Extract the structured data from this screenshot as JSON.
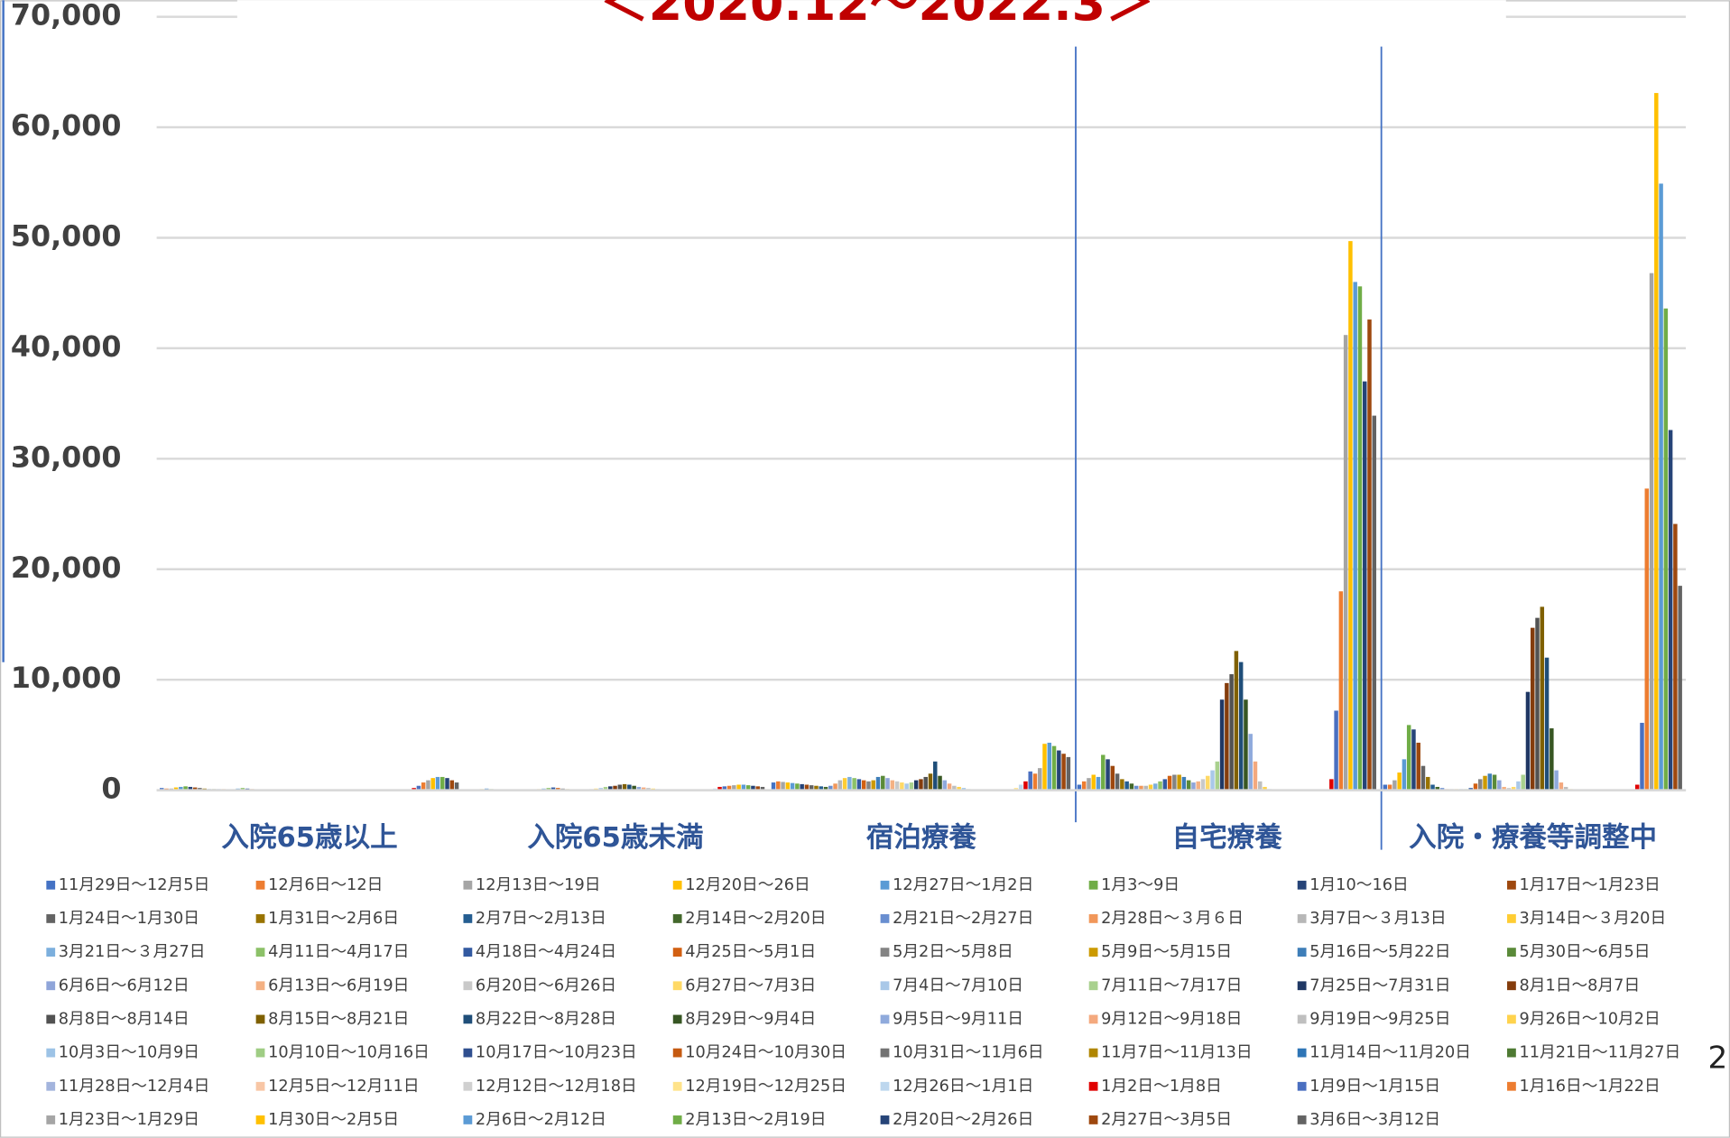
{
  "chart_data": {
    "type": "bar",
    "title": "＜2020.12～2022.3＞",
    "page_number": "2",
    "categories": [
      "入院65歳以上",
      "入院65歳未満",
      "宿泊療養",
      "自宅療養",
      "入院・療養等調整中"
    ],
    "ylim": [
      0,
      70000
    ],
    "yticks": [
      0,
      {
        "value": 10000,
        "label": "10,000"
      },
      {
        "value": 20000,
        "label": "20,000"
      },
      {
        "value": 30000,
        "label": "30,000"
      },
      {
        "value": 40000,
        "label": "40,000"
      },
      {
        "value": 50000,
        "label": "50,000"
      },
      {
        "value": 60000,
        "label": "60,000"
      },
      {
        "value": 70000,
        "label": "70,000"
      }
    ],
    "grid": true,
    "series": [
      {
        "name": "11月29日～12月5日",
        "color": "#4472c4",
        "values": [
          200,
          50,
          700,
          500,
          500
        ]
      },
      {
        "name": "12月6日～12日",
        "color": "#ed7d31",
        "values": [
          150,
          50,
          800,
          800,
          500
        ]
      },
      {
        "name": "12月13日～19日",
        "color": "#a5a5a5",
        "values": [
          150,
          60,
          750,
          1100,
          900
        ]
      },
      {
        "name": "12月20日～26日",
        "color": "#ffc000",
        "values": [
          250,
          100,
          700,
          1400,
          1600
        ]
      },
      {
        "name": "12月27日～1月2日",
        "color": "#5b9bd5",
        "values": [
          300,
          150,
          650,
          1200,
          2800
        ]
      },
      {
        "name": "1月3～9日",
        "color": "#70ad47",
        "values": [
          350,
          100,
          600,
          3200,
          5900
        ]
      },
      {
        "name": "1月10～16日",
        "color": "#264478",
        "values": [
          300,
          80,
          550,
          2800,
          5500
        ]
      },
      {
        "name": "1月17日～1月23日",
        "color": "#9e480e",
        "values": [
          250,
          50,
          500,
          2200,
          4300
        ]
      },
      {
        "name": "1月24日～1月30日",
        "color": "#636363",
        "values": [
          200,
          40,
          450,
          1500,
          2200
        ]
      },
      {
        "name": "1月31日～2月6日",
        "color": "#997300",
        "values": [
          150,
          30,
          400,
          1000,
          1200
        ]
      },
      {
        "name": "2月7日～2月13日",
        "color": "#255e91",
        "values": [
          100,
          20,
          350,
          800,
          500
        ]
      },
      {
        "name": "2月14日～2月20日",
        "color": "#43682b",
        "values": [
          100,
          20,
          300,
          600,
          300
        ]
      },
      {
        "name": "2月21日～2月27日",
        "color": "#698ed0",
        "values": [
          100,
          30,
          400,
          400,
          200
        ]
      },
      {
        "name": "2月28日～３月６日",
        "color": "#f1975a",
        "values": [
          100,
          50,
          600,
          400,
          100
        ]
      },
      {
        "name": "3月7日～３月13日",
        "color": "#b7b7b7",
        "values": [
          80,
          80,
          900,
          400,
          100
        ]
      },
      {
        "name": "3月14日～３月20日",
        "color": "#ffcd33",
        "values": [
          80,
          100,
          1100,
          500,
          100
        ]
      },
      {
        "name": "3月21日～３月27日",
        "color": "#7cafdd",
        "values": [
          150,
          150,
          1200,
          600,
          100
        ]
      },
      {
        "name": "4月11日～4月17日",
        "color": "#8cc168",
        "values": [
          200,
          200,
          1100,
          800,
          100
        ]
      },
      {
        "name": "4月18日～4月24日",
        "color": "#335aa1",
        "values": [
          150,
          250,
          1000,
          1000,
          200
        ]
      },
      {
        "name": "4月25日～5月1日",
        "color": "#d26012",
        "values": [
          100,
          200,
          900,
          1300,
          600
        ]
      },
      {
        "name": "5月2日～5月8日",
        "color": "#848484",
        "values": [
          80,
          150,
          800,
          1400,
          1000
        ]
      },
      {
        "name": "5月9日～5月15日",
        "color": "#cc9a00",
        "values": [
          60,
          100,
          900,
          1400,
          1300
        ]
      },
      {
        "name": "5月16日～5月22日",
        "color": "#3e7eb8",
        "values": [
          50,
          80,
          1200,
          1200,
          1500
        ]
      },
      {
        "name": "5月30日～6月5日",
        "color": "#5a8a39",
        "values": [
          40,
          60,
          1300,
          900,
          1400
        ]
      },
      {
        "name": "6月6日～6月12日",
        "color": "#8fa5d9",
        "values": [
          40,
          60,
          1100,
          700,
          900
        ]
      },
      {
        "name": "6月13日～6月19日",
        "color": "#f4b183",
        "values": [
          30,
          80,
          900,
          800,
          300
        ]
      },
      {
        "name": "6月20日～6月26日",
        "color": "#c9c9c9",
        "values": [
          30,
          100,
          800,
          1000,
          200
        ]
      },
      {
        "name": "6月27日～7月3日",
        "color": "#ffd966",
        "values": [
          30,
          150,
          700,
          1300,
          300
        ]
      },
      {
        "name": "7月4日～7月10日",
        "color": "#a9c8e8",
        "values": [
          30,
          200,
          600,
          1800,
          800
        ]
      },
      {
        "name": "7月11日～7月17日",
        "color": "#a9d18e",
        "values": [
          30,
          300,
          700,
          2600,
          1400
        ]
      },
      {
        "name": "7月25日～7月31日",
        "color": "#203864",
        "values": [
          40,
          350,
          900,
          8200,
          8900
        ]
      },
      {
        "name": "8月1日～8月7日",
        "color": "#843c0c",
        "values": [
          60,
          400,
          1000,
          9700,
          14700
        ]
      },
      {
        "name": "8月8日～8月14日",
        "color": "#525252",
        "values": [
          80,
          500,
          1200,
          10500,
          15600
        ]
      },
      {
        "name": "8月15日～8月21日",
        "color": "#7f6000",
        "values": [
          80,
          550,
          1500,
          12600,
          16600
        ]
      },
      {
        "name": "8月22日～8月28日",
        "color": "#1f4e79",
        "values": [
          80,
          500,
          2600,
          11600,
          12000
        ]
      },
      {
        "name": "8月29日～9月4日",
        "color": "#375623",
        "values": [
          70,
          400,
          1300,
          8200,
          5600
        ]
      },
      {
        "name": "9月5日～9月11日",
        "color": "#8faadc",
        "values": [
          60,
          300,
          900,
          5100,
          1800
        ]
      },
      {
        "name": "9月12日～9月18日",
        "color": "#f4a97e",
        "values": [
          50,
          250,
          600,
          2600,
          700
        ]
      },
      {
        "name": "9月19日～9月25日",
        "color": "#bfbfbf",
        "values": [
          40,
          200,
          400,
          800,
          300
        ]
      },
      {
        "name": "9月26日～10月2日",
        "color": "#ffd34d",
        "values": [
          30,
          150,
          300,
          300,
          100
        ]
      },
      {
        "name": "10月3日～10月9日",
        "color": "#9dc3e6",
        "values": [
          20,
          100,
          200,
          100,
          50
        ]
      },
      {
        "name": "10月10日～10月16日",
        "color": "#9fcd84",
        "values": [
          10,
          50,
          100,
          50,
          30
        ]
      },
      {
        "name": "10月17日～10月23日",
        "color": "#2f4f8f",
        "values": [
          10,
          20,
          50,
          30,
          20
        ]
      },
      {
        "name": "10月24日～10月30日",
        "color": "#c55a11",
        "values": [
          10,
          10,
          30,
          20,
          20
        ]
      },
      {
        "name": "10月31日～11月6日",
        "color": "#737373",
        "values": [
          10,
          10,
          20,
          20,
          20
        ]
      },
      {
        "name": "11月7日～11月13日",
        "color": "#b08600",
        "values": [
          10,
          10,
          20,
          20,
          20
        ]
      },
      {
        "name": "11月14日～11月20日",
        "color": "#2e75b6",
        "values": [
          10,
          10,
          20,
          20,
          20
        ]
      },
      {
        "name": "11月21日～11月27日",
        "color": "#4e7a33",
        "values": [
          10,
          10,
          20,
          20,
          20
        ]
      },
      {
        "name": "11月28日～12月4日",
        "color": "#a3b4dd",
        "values": [
          10,
          10,
          20,
          20,
          20
        ]
      },
      {
        "name": "12月5日～12月11日",
        "color": "#f8c6a5",
        "values": [
          10,
          10,
          20,
          20,
          20
        ]
      },
      {
        "name": "12月12日～12月18日",
        "color": "#d0d0d0",
        "values": [
          20,
          20,
          50,
          20,
          20
        ]
      },
      {
        "name": "12月19日～12月25日",
        "color": "#ffe38a",
        "values": [
          40,
          50,
          200,
          20,
          20
        ]
      },
      {
        "name": "12月26日～1月1日",
        "color": "#bdd7ee",
        "values": [
          80,
          150,
          500,
          30,
          30
        ]
      },
      {
        "name": "1月2日～1月8日",
        "color": "#e00000",
        "values": [
          200,
          300,
          800,
          1000,
          500
        ]
      },
      {
        "name": "1月9日～1月15日",
        "color": "#4a6fc0",
        "values": [
          400,
          350,
          1700,
          7200,
          6100
        ]
      },
      {
        "name": "1月16日～1月22日",
        "color": "#ed7d31",
        "values": [
          700,
          400,
          1500,
          18000,
          27300
        ]
      },
      {
        "name": "1月23日～1月29日",
        "color": "#a5a5a5",
        "values": [
          900,
          450,
          2000,
          41200,
          46800
        ]
      },
      {
        "name": "1月30日～2月5日",
        "color": "#ffc000",
        "values": [
          1100,
          500,
          4200,
          49700,
          63100
        ]
      },
      {
        "name": "2月6日～2月12日",
        "color": "#5b9bd5",
        "values": [
          1200,
          500,
          4300,
          46000,
          54900
        ]
      },
      {
        "name": "2月13日～2月19日",
        "color": "#70ad47",
        "values": [
          1200,
          450,
          4000,
          45600,
          43600
        ]
      },
      {
        "name": "2月20日～2月26日",
        "color": "#264478",
        "values": [
          1100,
          400,
          3600,
          37000,
          32600
        ]
      },
      {
        "name": "2月27日～3月5日",
        "color": "#9e480e",
        "values": [
          900,
          350,
          3300,
          42600,
          24100
        ]
      },
      {
        "name": "3月6日～3月12日",
        "color": "#636363",
        "values": [
          700,
          300,
          3000,
          33900,
          18500
        ]
      }
    ]
  }
}
